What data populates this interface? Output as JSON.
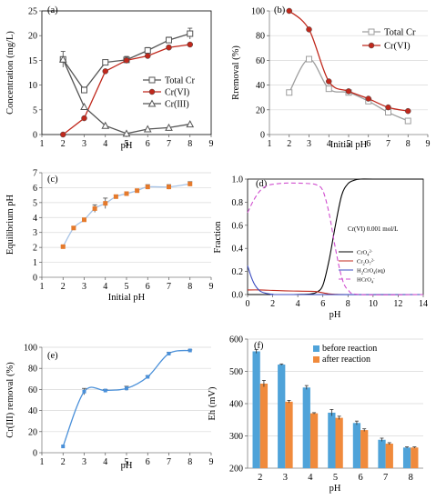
{
  "chart_data": [
    {
      "panel": "(a)",
      "type": "line",
      "xlabel": "pH",
      "ylabel": "Concentration (mg/L)",
      "xlim": [
        1,
        9
      ],
      "ylim": [
        0,
        25
      ],
      "xticks": [
        "1",
        "2",
        "3",
        "4",
        "5",
        "6",
        "7",
        "8",
        "9"
      ],
      "yticks": [
        "0",
        "5",
        "10",
        "15",
        "20",
        "25"
      ],
      "grid": false,
      "legend": "center-right",
      "series": [
        {
          "name": "Total Cr",
          "color": "#555555",
          "marker": "square-open",
          "x": [
            2,
            3,
            4,
            5,
            6,
            7,
            8
          ],
          "values": [
            15.2,
            9.0,
            14.6,
            15.1,
            17.0,
            19.1,
            20.4
          ],
          "err": [
            1.6,
            0.6,
            0.3,
            0.7,
            0.6,
            0.6,
            1.1
          ]
        },
        {
          "name": "Cr(VI)",
          "color": "#c0281c",
          "marker": "circle-filled",
          "x": [
            2,
            3,
            4,
            5,
            6,
            7,
            8
          ],
          "values": [
            0.0,
            3.3,
            12.8,
            15.0,
            15.9,
            17.6,
            18.2
          ],
          "err": [
            0,
            0.3,
            0.3,
            0.4,
            0.3,
            0.4,
            0.3
          ]
        },
        {
          "name": "Cr(III)",
          "color": "#555555",
          "marker": "triangle-open",
          "x": [
            2,
            3,
            4,
            5,
            6,
            7,
            8
          ],
          "values": [
            15.2,
            5.6,
            1.8,
            0.2,
            1.1,
            1.4,
            2.1
          ],
          "err": [
            0,
            0,
            0,
            0,
            0,
            0,
            0
          ]
        }
      ]
    },
    {
      "panel": "(b)",
      "type": "line",
      "xlabel": "Initial pH",
      "ylabel": "Rremoval (%)",
      "xlim": [
        1,
        9
      ],
      "ylim": [
        0,
        100
      ],
      "xticks": [
        "1",
        "2",
        "3",
        "4",
        "5",
        "6",
        "7",
        "8",
        "9"
      ],
      "yticks": [
        "0",
        "20",
        "40",
        "60",
        "80",
        "100"
      ],
      "grid": true,
      "legend": "top-right",
      "series": [
        {
          "name": "Total Cr",
          "color": "#9e9e9e",
          "marker": "square-open",
          "x": [
            2,
            3,
            4,
            5,
            6,
            7,
            8
          ],
          "values": [
            34,
            61,
            37,
            34,
            27,
            18,
            11
          ]
        },
        {
          "name": "Cr(VI)",
          "color": "#c0281c",
          "marker": "circle-filled",
          "x": [
            2,
            3,
            4,
            5,
            6,
            7,
            8
          ],
          "values": [
            100,
            85,
            43,
            35,
            29,
            22,
            19
          ]
        }
      ]
    },
    {
      "panel": "(c)",
      "type": "line",
      "xlabel": "Initial pH",
      "ylabel": "Equilibrium pH",
      "xlim": [
        1,
        9
      ],
      "ylim": [
        0,
        7
      ],
      "xticks": [
        "1",
        "2",
        "3",
        "4",
        "5",
        "6",
        "7",
        "8",
        "9"
      ],
      "yticks": [
        "0",
        "1",
        "2",
        "3",
        "4",
        "5",
        "6",
        "7"
      ],
      "grid": true,
      "legend": "none",
      "series": [
        {
          "name": "",
          "color": "#a7c3e6",
          "markerColor": "#e57a2c",
          "x": [
            2,
            2.5,
            3,
            3.5,
            4,
            4.5,
            5,
            5.5,
            6,
            7,
            8
          ],
          "values": [
            2.05,
            3.3,
            3.85,
            4.6,
            4.95,
            5.4,
            5.6,
            5.8,
            6.05,
            6.05,
            6.25
          ],
          "err": [
            0.05,
            0.08,
            0.08,
            0.25,
            0.35,
            0.1,
            0.08,
            0.1,
            0.15,
            0.15,
            0.15
          ]
        }
      ]
    },
    {
      "panel": "(d)",
      "type": "line",
      "xlabel": "pH",
      "ylabel": "Fraction",
      "xlim": [
        0,
        14
      ],
      "ylim": [
        0,
        1.0
      ],
      "xticks": [
        "0",
        "2",
        "4",
        "6",
        "8",
        "10",
        "12",
        "14"
      ],
      "yticks": [
        "0.0",
        "0.2",
        "0.4",
        "0.6",
        "0.8",
        "1.0"
      ],
      "grid": false,
      "legend": "center-right",
      "annotation": "Cr(VI) 0.001 mol/L",
      "series": [
        {
          "name": "CrO₄²⁻",
          "legend_main": "CrO",
          "legend_sub": "4",
          "legend_sup": "2-",
          "color": "#000000",
          "dash": "",
          "x": [
            0,
            1,
            2,
            3,
            4,
            5,
            5.5,
            6,
            6.5,
            7,
            7.5,
            8,
            8.5,
            9,
            10,
            14
          ],
          "values": [
            0,
            0,
            0,
            0,
            0.001,
            0.005,
            0.02,
            0.08,
            0.3,
            0.6,
            0.86,
            0.96,
            0.99,
            1.0,
            1.0,
            1.0
          ]
        },
        {
          "name": "Cr₂O₇²⁻",
          "legend_main": "Cr",
          "legend_sub": "2",
          "legend_main2": "O",
          "legend_sub2": "7",
          "legend_sup": "2-",
          "color": "#c0281c",
          "dash": "",
          "x": [
            0,
            1,
            2,
            3,
            4,
            5,
            5.5,
            6,
            6.5,
            7,
            8,
            14
          ],
          "values": [
            0.04,
            0.04,
            0.036,
            0.032,
            0.03,
            0.028,
            0.025,
            0.015,
            0.006,
            0.002,
            0,
            0
          ]
        },
        {
          "name": "H₂CrO₄(aq)",
          "legend_main": "H",
          "legend_sub": "2",
          "legend_main2": "CrO",
          "legend_sub2": "4",
          "legend_tail": "(aq)",
          "color": "#3b4cc0",
          "dash": "",
          "x": [
            0,
            0.3,
            0.6,
            1,
            1.5,
            2,
            3,
            14
          ],
          "values": [
            0.25,
            0.15,
            0.08,
            0.03,
            0.01,
            0.003,
            0,
            0
          ]
        },
        {
          "name": "HCrO₄⁻",
          "legend_main": "HCrO",
          "legend_sub": "4",
          "legend_sup": "-",
          "color": "#d04fcf",
          "dash": "5,3",
          "x": [
            0,
            0.5,
            1,
            1.5,
            2,
            3,
            4,
            5,
            5.5,
            6,
            6.5,
            7,
            7.5,
            8,
            9,
            14
          ],
          "values": [
            0.71,
            0.82,
            0.9,
            0.94,
            0.955,
            0.965,
            0.965,
            0.96,
            0.95,
            0.9,
            0.7,
            0.4,
            0.15,
            0.04,
            0,
            0
          ]
        }
      ]
    },
    {
      "panel": "(e)",
      "type": "line",
      "xlabel": "pH",
      "ylabel": "Cr(III) removal (%)",
      "xlim": [
        1,
        9
      ],
      "ylim": [
        0,
        100
      ],
      "xticks": [
        "1",
        "2",
        "3",
        "4",
        "5",
        "6",
        "7",
        "8",
        "9"
      ],
      "yticks": [
        "0",
        "20",
        "40",
        "60",
        "80",
        "100"
      ],
      "grid": true,
      "legend": "none",
      "series": [
        {
          "name": "",
          "color": "#4a90d9",
          "x": [
            2,
            3,
            4,
            5,
            6,
            7,
            8
          ],
          "values": [
            6,
            58,
            59,
            61,
            72,
            94,
            97
          ],
          "err": [
            0,
            3,
            1,
            2,
            1,
            1,
            0.5
          ]
        }
      ]
    },
    {
      "panel": "(f)",
      "type": "bar",
      "xlabel": "pH",
      "ylabel": "Eh (mV)",
      "ylim": [
        200,
        600
      ],
      "yticks": [
        "200",
        "300",
        "400",
        "500",
        "600"
      ],
      "categories": [
        "2",
        "3",
        "4",
        "5",
        "6",
        "7",
        "8"
      ],
      "grid": true,
      "legend": "top-right",
      "series": [
        {
          "name": "before reaction",
          "color": "#4fa3d9",
          "values": [
            562,
            521,
            450,
            372,
            340,
            288,
            264
          ],
          "err": [
            6,
            2,
            6,
            10,
            6,
            5,
            2
          ]
        },
        {
          "name": "after reaction",
          "color": "#f08a3c",
          "values": [
            462,
            406,
            370,
            356,
            318,
            276,
            264
          ],
          "err": [
            10,
            4,
            2,
            5,
            4,
            3,
            2
          ]
        }
      ]
    }
  ]
}
